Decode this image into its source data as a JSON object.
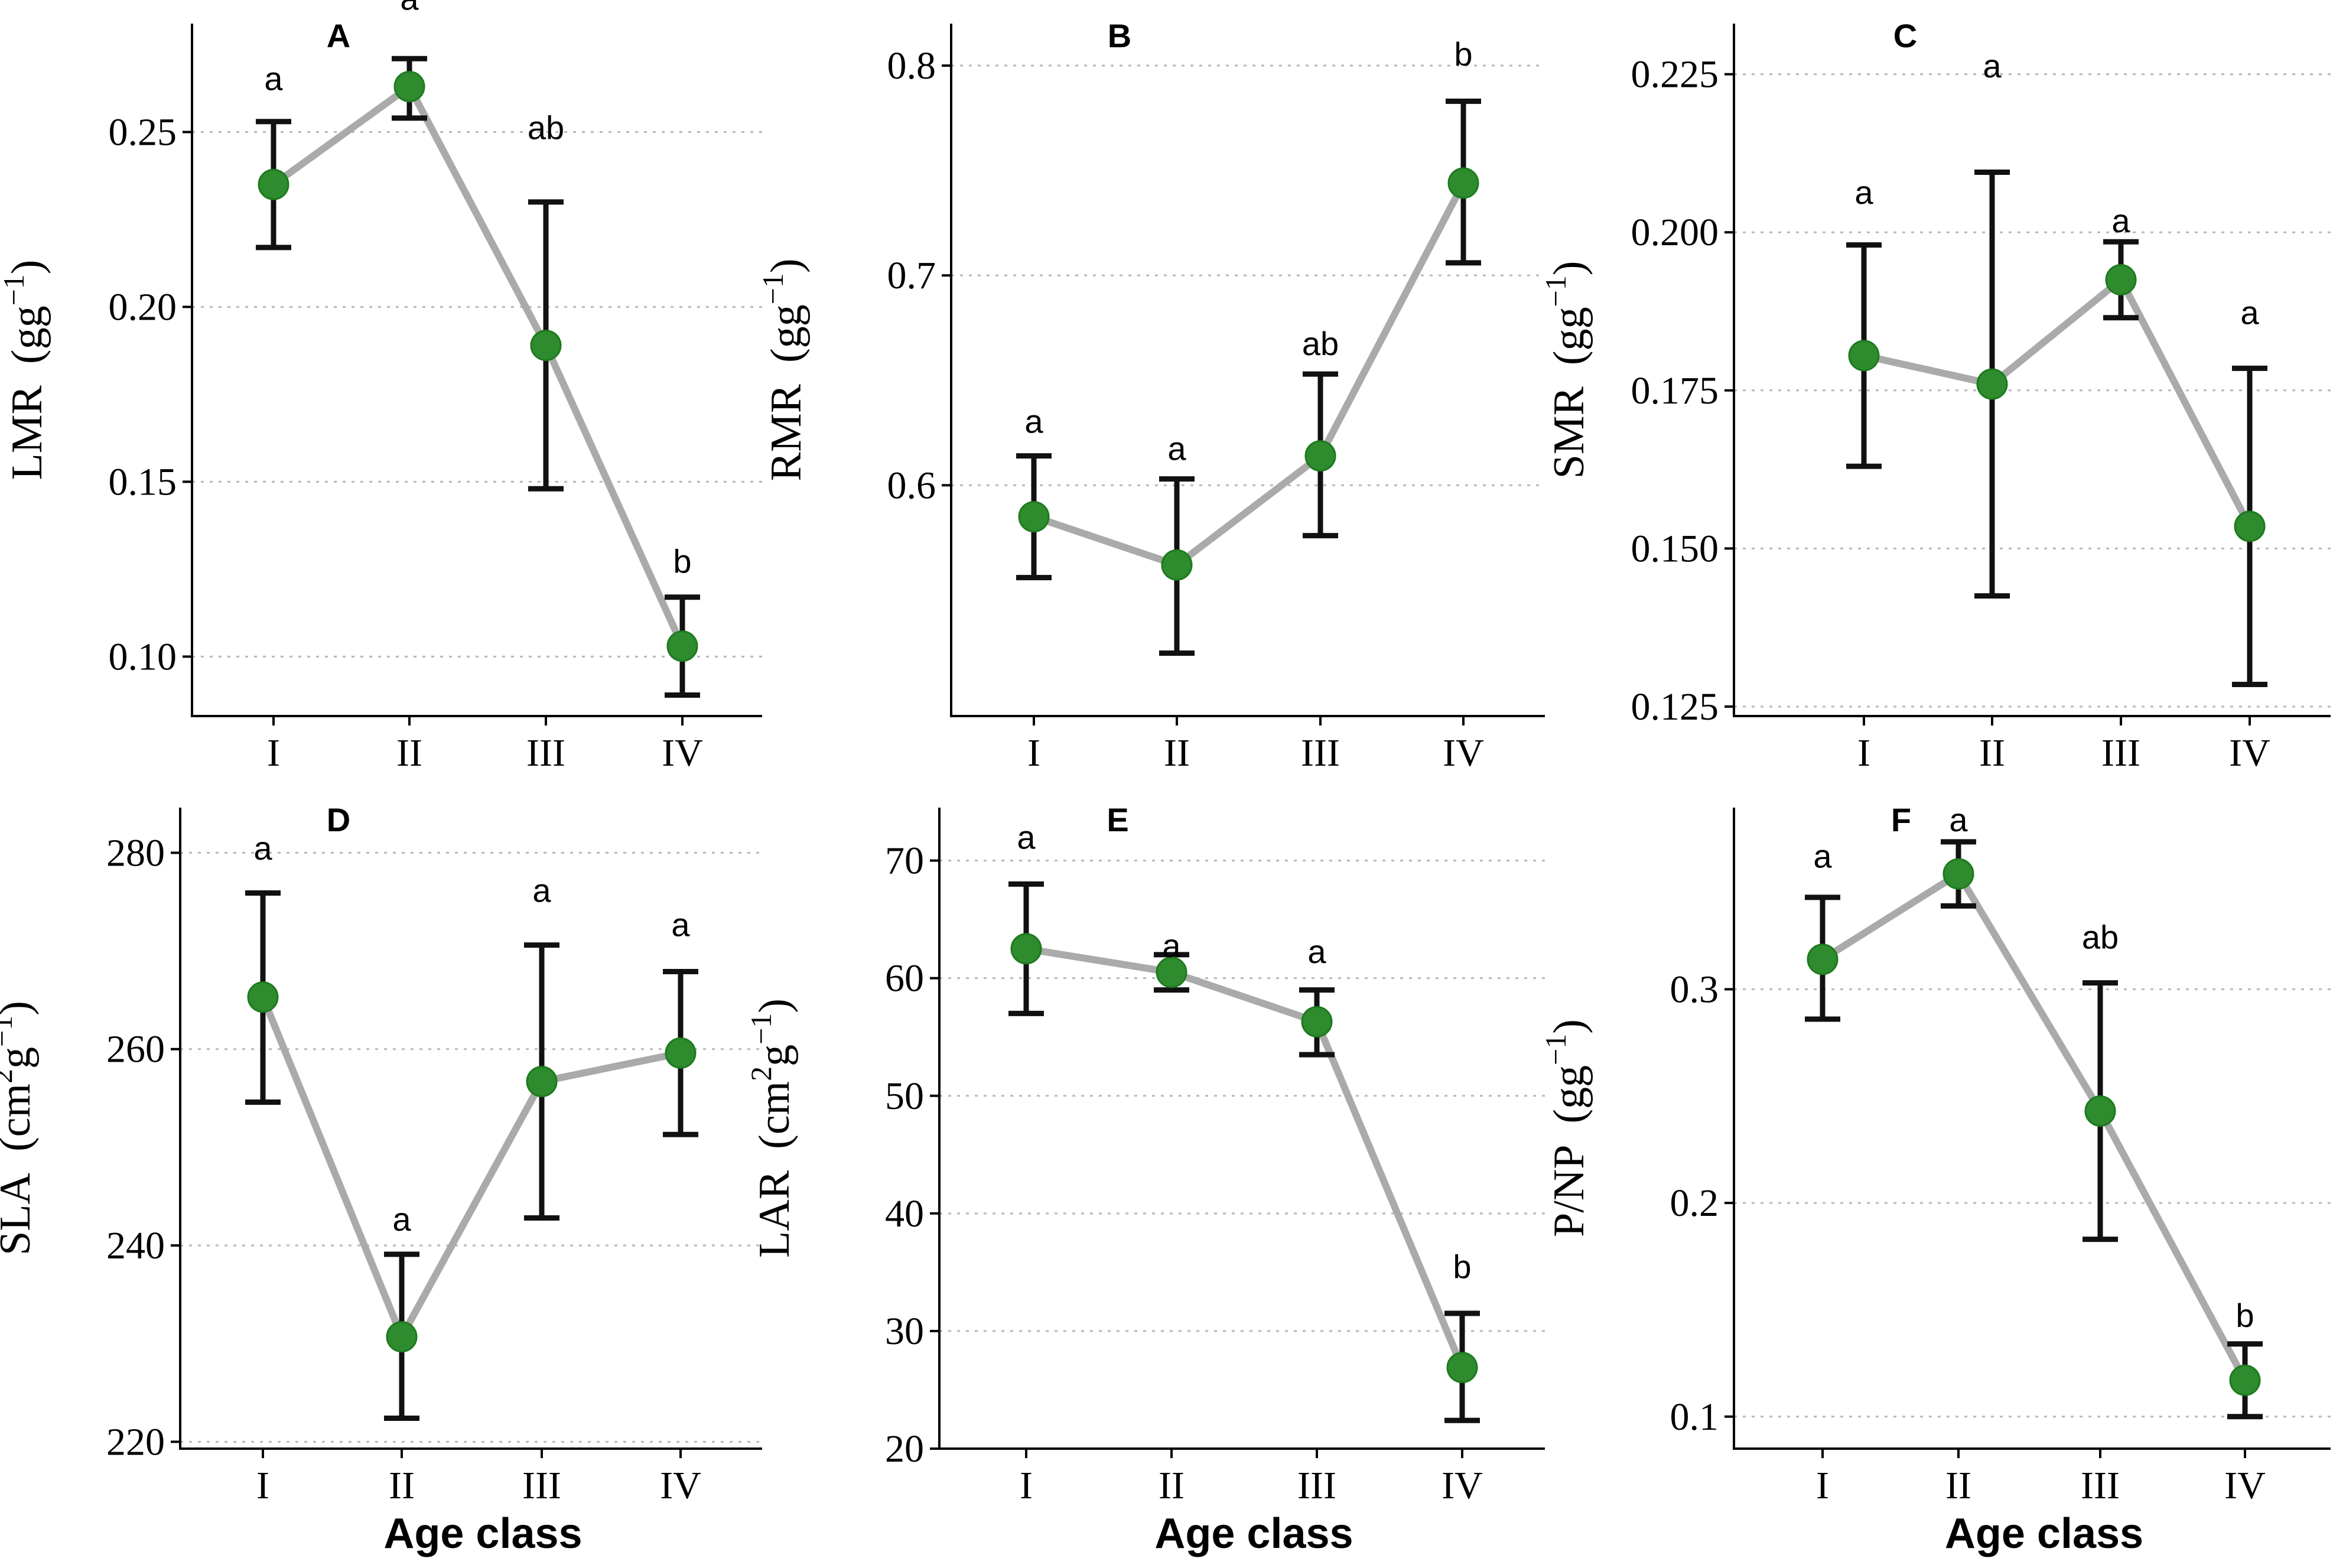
{
  "colors": {
    "point": "#2e8b2e",
    "line": "#aaaaaa",
    "error_bar": "#111111",
    "grid": "#b8b8b8"
  },
  "xlabel": "Age class",
  "chart_data": [
    {
      "type": "line",
      "panel": "A",
      "ylabel": "LMR",
      "yunit": "(gg",
      "yunit_sup": "−1",
      "categories": [
        "I",
        "II",
        "III",
        "IV"
      ],
      "values": [
        0.235,
        0.263,
        0.189,
        0.103
      ],
      "err_low": [
        0.217,
        0.254,
        0.148,
        0.089
      ],
      "err_high": [
        0.253,
        0.271,
        0.23,
        0.117
      ],
      "letters": [
        "a",
        "a",
        "ab",
        "b"
      ],
      "ylim": [
        0.083,
        0.281
      ],
      "yticks": [
        0.1,
        0.15,
        0.2,
        0.25
      ],
      "ytick_labels": [
        "0.10",
        "0.15",
        "0.20",
        "0.25"
      ],
      "letter_pos": [
        0.262,
        0.285,
        0.248,
        0.124
      ]
    },
    {
      "type": "line",
      "panel": "B",
      "ylabel": "RMR",
      "yunit": "(gg",
      "yunit_sup": "−1",
      "categories": [
        "I",
        "II",
        "III",
        "IV"
      ],
      "values": [
        0.585,
        0.562,
        0.614,
        0.744
      ],
      "err_low": [
        0.556,
        0.52,
        0.576,
        0.706
      ],
      "err_high": [
        0.614,
        0.603,
        0.653,
        0.783
      ],
      "letters": [
        "a",
        "a",
        "ab",
        "b"
      ],
      "ylim": [
        0.49,
        0.82
      ],
      "yticks": [
        0.6,
        0.7,
        0.8
      ],
      "ytick_labels": [
        "0.6",
        "0.7",
        "0.8"
      ],
      "letter_pos": [
        0.625,
        0.612,
        0.662,
        0.8
      ]
    },
    {
      "type": "line",
      "panel": "C",
      "ylabel": "SMR",
      "yunit": "(gg",
      "yunit_sup": "−1",
      "categories": [
        "I",
        "II",
        "III",
        "IV"
      ],
      "values": [
        0.1805,
        0.176,
        0.1925,
        0.1535
      ],
      "err_low": [
        0.163,
        0.1425,
        0.1865,
        0.1285
      ],
      "err_high": [
        0.198,
        0.2095,
        0.1985,
        0.1785
      ],
      "letters": [
        "a",
        "a",
        "a",
        "a"
      ],
      "ylim": [
        0.1235,
        0.233
      ],
      "yticks": [
        0.125,
        0.15,
        0.175,
        0.2,
        0.225
      ],
      "ytick_labels": [
        "0.125",
        "0.150",
        "0.175",
        "0.200",
        "0.225"
      ],
      "letter_pos": [
        0.2045,
        0.2245,
        0.2,
        0.1855
      ]
    },
    {
      "type": "line",
      "panel": "D",
      "ylabel": "SLA",
      "yunit": "(cm",
      "yunit_sup": "2",
      "yunit_mid": "g",
      "yunit_sup2": "−1",
      "categories": [
        "I",
        "II",
        "III",
        "IV"
      ],
      "values": [
        265.3,
        230.7,
        256.7,
        259.6
      ],
      "err_low": [
        254.6,
        222.4,
        242.8,
        251.3
      ],
      "err_high": [
        275.9,
        239.1,
        270.6,
        267.9
      ],
      "letters": [
        "a",
        "a",
        "a",
        "a"
      ],
      "ylim": [
        219.3,
        284.6
      ],
      "yticks": [
        220,
        240,
        260,
        280
      ],
      "ytick_labels": [
        "220",
        "240",
        "260",
        "280"
      ],
      "letter_pos": [
        279.3,
        241.5,
        275.0,
        271.5
      ]
    },
    {
      "type": "line",
      "panel": "E",
      "ylabel": "LAR",
      "yunit": "(cm",
      "yunit_sup": "2",
      "yunit_mid": "g",
      "yunit_sup2": "−1",
      "categories": [
        "I",
        "II",
        "III",
        "IV"
      ],
      "values": [
        62.5,
        60.5,
        56.3,
        26.9
      ],
      "err_low": [
        57.0,
        59.0,
        53.5,
        22.4
      ],
      "err_high": [
        68.0,
        62.0,
        59.0,
        31.5
      ],
      "letters": [
        "a",
        "a",
        "a",
        "b"
      ],
      "ylim": [
        20,
        74.5
      ],
      "yticks": [
        20,
        30,
        40,
        50,
        60,
        70
      ],
      "ytick_labels": [
        "20",
        "30",
        "40",
        "50",
        "60",
        "70"
      ],
      "letter_pos": [
        71.0,
        61.8,
        61.3,
        34.5
      ]
    },
    {
      "type": "line",
      "panel": "F",
      "ylabel": "P/NP",
      "yunit": "(gg",
      "yunit_sup": "−1",
      "categories": [
        "I",
        "II",
        "III",
        "IV"
      ],
      "values": [
        0.314,
        0.354,
        0.243,
        0.117
      ],
      "err_low": [
        0.286,
        0.339,
        0.183,
        0.1
      ],
      "err_high": [
        0.343,
        0.369,
        0.303,
        0.134
      ],
      "letters": [
        "a",
        "a",
        "ab",
        "b"
      ],
      "ylim": [
        0.085,
        0.385
      ],
      "yticks": [
        0.1,
        0.2,
        0.3
      ],
      "ytick_labels": [
        "0.1",
        "0.2",
        "0.3"
      ],
      "letter_pos": [
        0.357,
        0.374,
        0.319,
        0.142
      ]
    }
  ]
}
